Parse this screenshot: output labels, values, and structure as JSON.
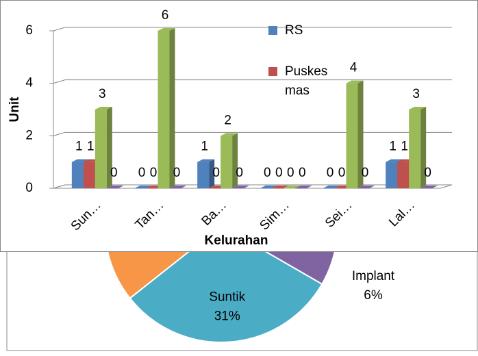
{
  "chart_data": [
    {
      "type": "pie",
      "categories": [
        "Implant",
        "Suntik",
        null
      ],
      "values": [
        6,
        31,
        15
      ],
      "value_labels": [
        "6%",
        "31%",
        null
      ],
      "colors": [
        "#8064a2",
        "#4bacc6",
        "#f79646"
      ]
    },
    {
      "type": "bar3d",
      "ylabel": "Unit",
      "xlabel": "Kelurahan",
      "categories": [
        "Sun…",
        "Tan…",
        "Ba…",
        "Sim…",
        "Sei…",
        "Lal…"
      ],
      "series": [
        {
          "name": "RS",
          "color": "#4f81bd",
          "values": [
            1,
            0,
            1,
            0,
            0,
            1
          ]
        },
        {
          "name": "Puskes mas",
          "color": "#c0504d",
          "values": [
            1,
            0,
            0,
            0,
            0,
            1
          ]
        },
        {
          "color": "#9bbb59",
          "values": [
            3,
            6,
            2,
            0,
            4,
            3
          ]
        },
        {
          "color": "#8064a2",
          "values": [
            0,
            0,
            0,
            0,
            0,
            0
          ]
        }
      ],
      "ylim": [
        0,
        6
      ],
      "yticks": [
        0,
        2,
        4,
        6
      ],
      "grid": true
    }
  ]
}
